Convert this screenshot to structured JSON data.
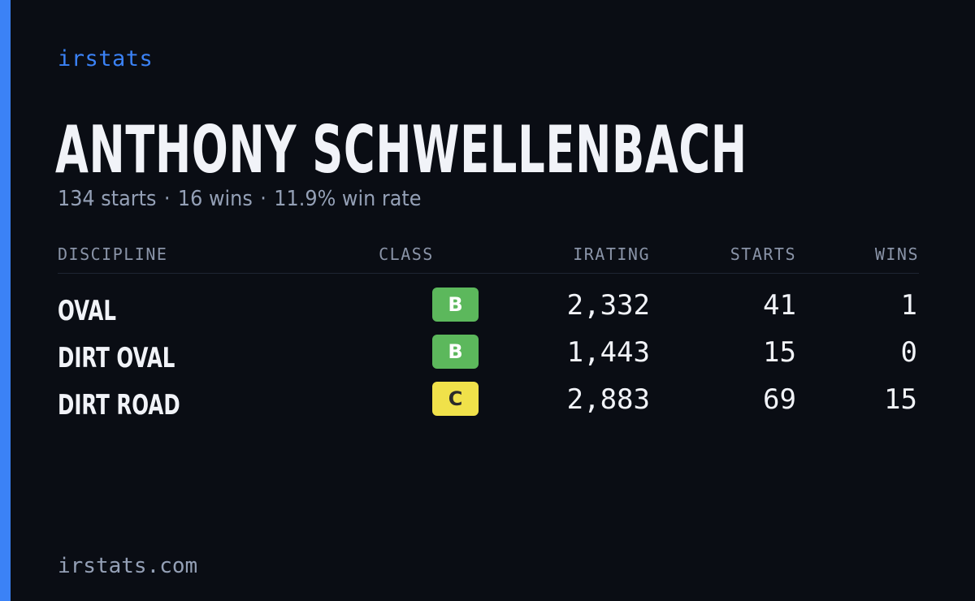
{
  "brand": "irstats",
  "driver": {
    "name": "ANTHONY SCHWELLENBACH",
    "summary": {
      "starts": "134 starts",
      "wins": "16 wins",
      "win_rate": "11.9% win rate",
      "separator": "·"
    }
  },
  "table": {
    "headers": {
      "discipline": "DISCIPLINE",
      "class": "CLASS",
      "irating": "IRATING",
      "starts": "STARTS",
      "wins": "WINS"
    },
    "rows": [
      {
        "discipline": "OVAL",
        "class": "B",
        "irating": "2,332",
        "starts": "41",
        "wins": "1"
      },
      {
        "discipline": "DIRT OVAL",
        "class": "B",
        "irating": "1,443",
        "starts": "15",
        "wins": "0"
      },
      {
        "discipline": "DIRT ROAD",
        "class": "C",
        "irating": "2,883",
        "starts": "69",
        "wins": "15"
      }
    ]
  },
  "footer": "irstats.com",
  "colors": {
    "accent": "#3b82f6",
    "class_b": "#5cb85c",
    "class_c": "#f0e14a",
    "background": "#0a0d14"
  }
}
